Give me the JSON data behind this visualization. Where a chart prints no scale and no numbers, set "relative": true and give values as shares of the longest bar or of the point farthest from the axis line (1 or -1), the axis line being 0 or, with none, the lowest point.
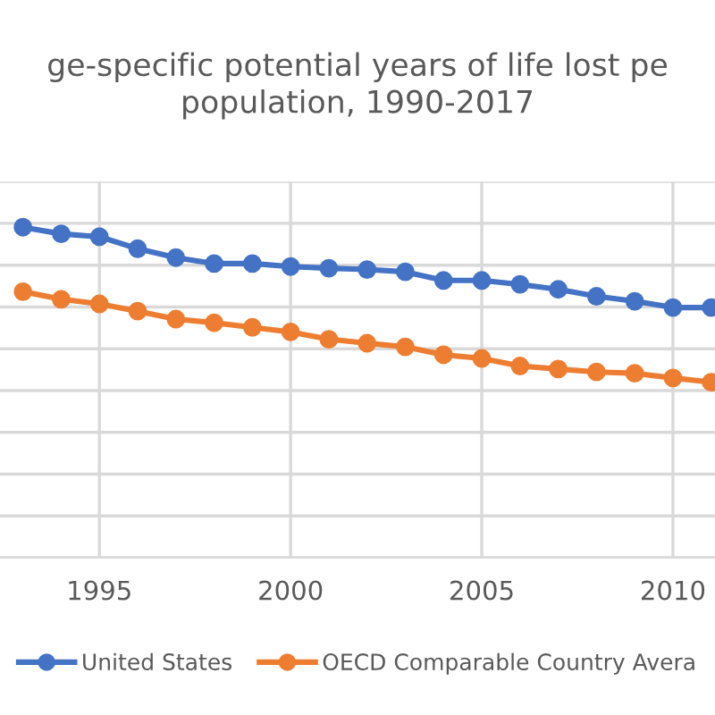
{
  "chart_data": {
    "type": "line",
    "title": "ge-specific potential years of life lost pe\npopulation, 1990-2017",
    "relative": true,
    "x": [
      1993,
      1994,
      1995,
      1996,
      1997,
      1998,
      1999,
      2000,
      2001,
      2002,
      2003,
      2004,
      2005,
      2006,
      2007,
      2008,
      2009,
      2010,
      2011
    ],
    "xlim": [
      1992.4,
      2011.1
    ],
    "xticks": [
      1995,
      2000,
      2005,
      2010
    ],
    "series": [
      {
        "name": "United States",
        "color": "#4472c4",
        "values": [
          1.0,
          0.98,
          0.971,
          0.935,
          0.908,
          0.89,
          0.89,
          0.881,
          0.876,
          0.872,
          0.865,
          0.839,
          0.839,
          0.827,
          0.812,
          0.791,
          0.776,
          0.757,
          0.757
        ]
      },
      {
        "name": "OECD Comparable Country Avera",
        "color": "#ed7d31",
        "values": [
          0.805,
          0.782,
          0.768,
          0.746,
          0.722,
          0.711,
          0.697,
          0.683,
          0.661,
          0.649,
          0.638,
          0.614,
          0.603,
          0.58,
          0.571,
          0.562,
          0.558,
          0.544,
          0.531
        ]
      }
    ],
    "marker": "circle",
    "line_style": "solid",
    "grid": true,
    "legend": "bottom"
  }
}
